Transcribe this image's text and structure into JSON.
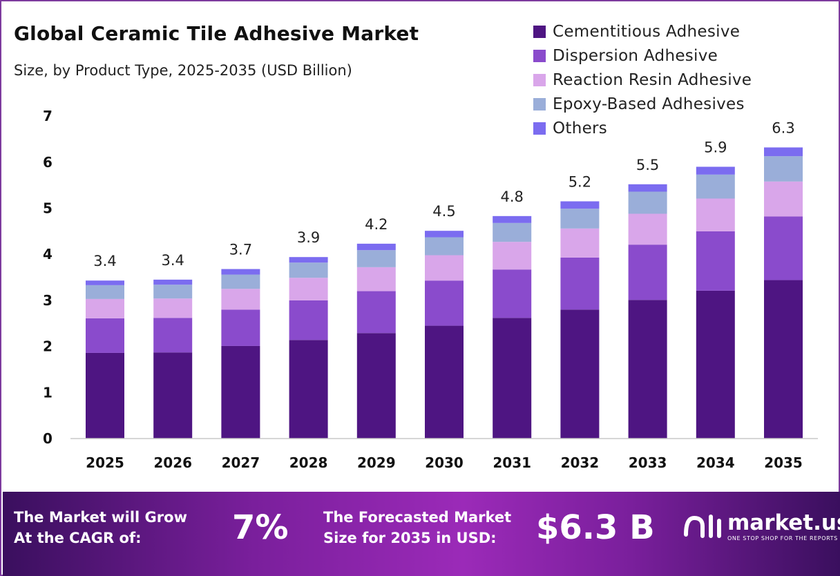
{
  "header": {
    "title": "Global Ceramic Tile Adhesive Market",
    "subtitle": "Size, by Product Type, 2025-2035 (USD Billion)"
  },
  "colors": {
    "frame": "#7d3a9e",
    "series": [
      "#4e1582",
      "#8a4bcc",
      "#d9a6ea",
      "#9aaed9",
      "#7b6cf0"
    ],
    "footer_gradient": [
      "#3a0f5e",
      "#9b2ab8"
    ]
  },
  "chart_data": {
    "type": "bar",
    "stacked": true,
    "categories": [
      "2025",
      "2026",
      "2027",
      "2028",
      "2029",
      "2030",
      "2031",
      "2032",
      "2033",
      "2034",
      "2035"
    ],
    "series": [
      {
        "name": "Cementitious Adhesive",
        "values": [
          1.86,
          1.87,
          2.01,
          2.14,
          2.29,
          2.45,
          2.62,
          2.8,
          3.01,
          3.21,
          3.44
        ]
      },
      {
        "name": "Dispersion Adhesive",
        "values": [
          0.75,
          0.75,
          0.79,
          0.86,
          0.91,
          0.98,
          1.05,
          1.13,
          1.2,
          1.29,
          1.38
        ]
      },
      {
        "name": "Reaction Resin Adhesive",
        "values": [
          0.42,
          0.42,
          0.45,
          0.49,
          0.52,
          0.55,
          0.6,
          0.63,
          0.67,
          0.71,
          0.76
        ]
      },
      {
        "name": "Epoxy-Based Adhesives",
        "values": [
          0.3,
          0.3,
          0.31,
          0.33,
          0.37,
          0.39,
          0.41,
          0.43,
          0.48,
          0.52,
          0.55
        ]
      },
      {
        "name": "Others",
        "values": [
          0.1,
          0.11,
          0.12,
          0.12,
          0.14,
          0.14,
          0.15,
          0.16,
          0.16,
          0.17,
          0.19
        ]
      }
    ],
    "totals": [
      "3.4",
      "3.4",
      "3.7",
      "3.9",
      "4.2",
      "4.5",
      "4.8",
      "5.2",
      "5.5",
      "5.9",
      "6.3"
    ],
    "ylim": [
      0,
      7
    ],
    "yticks": [
      "0",
      "1",
      "2",
      "3",
      "4",
      "5",
      "6",
      "7"
    ],
    "xlabel": "",
    "ylabel": "",
    "grid": false,
    "legend_position": "top-right"
  },
  "footer": {
    "cagr_label_line1": "The Market will Grow",
    "cagr_label_line2": "At the CAGR of:",
    "cagr_value": "7%",
    "forecast_label_line1": "The Forecasted Market",
    "forecast_label_line2": "Size for 2035 in USD:",
    "forecast_value": "$6.3 B",
    "brand_name": "market.us",
    "brand_tagline": "ONE STOP SHOP FOR THE REPORTS"
  }
}
